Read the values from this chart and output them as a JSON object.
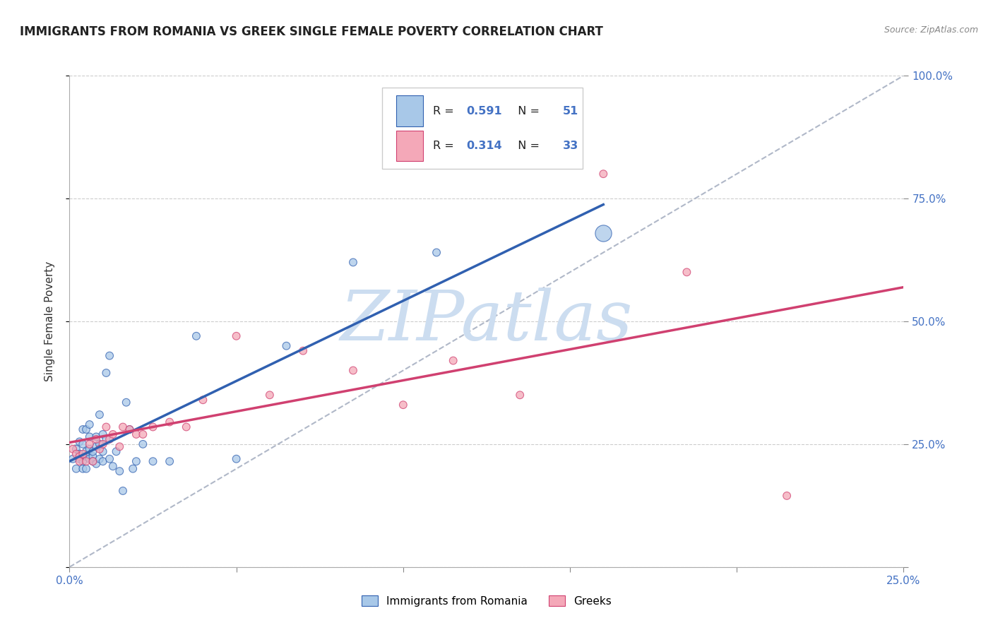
{
  "title": "IMMIGRANTS FROM ROMANIA VS GREEK SINGLE FEMALE POVERTY CORRELATION CHART",
  "source": "Source: ZipAtlas.com",
  "ylabel": "Single Female Poverty",
  "legend_label1": "Immigrants from Romania",
  "legend_label2": "Greeks",
  "r1": 0.591,
  "n1": 51,
  "r2": 0.314,
  "n2": 33,
  "xlim": [
    0.0,
    0.25
  ],
  "ylim": [
    0.0,
    1.0
  ],
  "color_blue": "#a8c8e8",
  "color_pink": "#f4a8b8",
  "line_color_blue": "#3060b0",
  "line_color_pink": "#d04070",
  "diag_line_color": "#b0b8c8",
  "watermark_text_color": "#ccddf0",
  "background_color": "#ffffff",
  "tick_color": "#4472c4",
  "blue_scatter_x": [
    0.001,
    0.002,
    0.002,
    0.003,
    0.003,
    0.003,
    0.004,
    0.004,
    0.004,
    0.004,
    0.005,
    0.005,
    0.005,
    0.005,
    0.006,
    0.006,
    0.006,
    0.006,
    0.007,
    0.007,
    0.007,
    0.008,
    0.008,
    0.008,
    0.009,
    0.009,
    0.009,
    0.01,
    0.01,
    0.01,
    0.011,
    0.011,
    0.012,
    0.012,
    0.013,
    0.014,
    0.015,
    0.016,
    0.017,
    0.018,
    0.019,
    0.02,
    0.022,
    0.025,
    0.03,
    0.038,
    0.05,
    0.065,
    0.085,
    0.11,
    0.16
  ],
  "blue_scatter_y": [
    0.22,
    0.24,
    0.2,
    0.255,
    0.23,
    0.22,
    0.215,
    0.25,
    0.28,
    0.2,
    0.235,
    0.225,
    0.28,
    0.2,
    0.22,
    0.265,
    0.24,
    0.29,
    0.225,
    0.235,
    0.215,
    0.21,
    0.245,
    0.265,
    0.22,
    0.25,
    0.31,
    0.215,
    0.235,
    0.27,
    0.395,
    0.26,
    0.22,
    0.43,
    0.205,
    0.235,
    0.195,
    0.155,
    0.335,
    0.28,
    0.2,
    0.215,
    0.25,
    0.215,
    0.215,
    0.47,
    0.22,
    0.45,
    0.62,
    0.64,
    0.68
  ],
  "blue_scatter_sizes": [
    60,
    60,
    60,
    60,
    60,
    60,
    60,
    60,
    60,
    60,
    60,
    60,
    60,
    60,
    60,
    60,
    60,
    60,
    60,
    60,
    60,
    60,
    60,
    60,
    60,
    60,
    60,
    60,
    60,
    60,
    60,
    60,
    60,
    60,
    60,
    60,
    60,
    60,
    60,
    60,
    60,
    60,
    60,
    60,
    60,
    60,
    60,
    60,
    60,
    60,
    280
  ],
  "pink_scatter_x": [
    0.001,
    0.002,
    0.003,
    0.003,
    0.004,
    0.005,
    0.006,
    0.007,
    0.008,
    0.009,
    0.01,
    0.011,
    0.012,
    0.013,
    0.015,
    0.016,
    0.018,
    0.02,
    0.022,
    0.025,
    0.03,
    0.035,
    0.04,
    0.05,
    0.06,
    0.07,
    0.085,
    0.1,
    0.115,
    0.135,
    0.16,
    0.185,
    0.215
  ],
  "pink_scatter_y": [
    0.24,
    0.23,
    0.225,
    0.215,
    0.23,
    0.215,
    0.25,
    0.215,
    0.26,
    0.24,
    0.25,
    0.285,
    0.26,
    0.27,
    0.245,
    0.285,
    0.28,
    0.27,
    0.27,
    0.285,
    0.295,
    0.285,
    0.34,
    0.47,
    0.35,
    0.44,
    0.4,
    0.33,
    0.42,
    0.35,
    0.8,
    0.6,
    0.145
  ],
  "pink_scatter_sizes": [
    60,
    60,
    60,
    60,
    60,
    60,
    60,
    60,
    60,
    60,
    60,
    60,
    60,
    60,
    60,
    60,
    60,
    60,
    60,
    60,
    60,
    60,
    60,
    60,
    60,
    60,
    60,
    60,
    60,
    60,
    60,
    60,
    60
  ]
}
